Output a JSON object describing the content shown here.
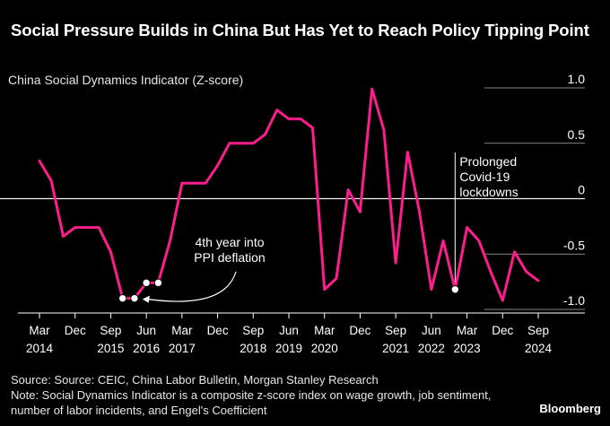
{
  "title": "Social Pressure Builds in China But Has Yet to Reach Policy Tipping Point",
  "subtitle": "China Social Dynamics Indicator (Z-score)",
  "footer": {
    "source": "Source: Source: CEIC, China Labor Bulletin, Morgan Stanley Research",
    "note": "Note: Social Dynamics Indicator is a composite z-score index on wage growth, job sentiment, number of labor incidents, and Engel's Coefficient"
  },
  "brand": "Bloomberg",
  "colors": {
    "background": "#000000",
    "line": "#ff1d8e",
    "text": "#ffffff",
    "grid": "#ffffff"
  },
  "chart_data": {
    "type": "line",
    "ylim": [
      -1.0,
      1.0
    ],
    "y_ticks": [
      1.0,
      0.5,
      0,
      -0.5,
      -1.0
    ],
    "y_tick_labels": [
      "1.0",
      "0.5",
      "0",
      "-0.5",
      "-1.0"
    ],
    "x_ticks": [
      {
        "t": 2014.17,
        "top": "Mar",
        "bottom": "2014"
      },
      {
        "t": 2014.92,
        "top": "Dec",
        "bottom": ""
      },
      {
        "t": 2015.67,
        "top": "Sep",
        "bottom": "2015"
      },
      {
        "t": 2016.42,
        "top": "Jun",
        "bottom": "2016"
      },
      {
        "t": 2017.17,
        "top": "Mar",
        "bottom": "2017"
      },
      {
        "t": 2017.92,
        "top": "Dec",
        "bottom": ""
      },
      {
        "t": 2018.67,
        "top": "Sep",
        "bottom": "2018"
      },
      {
        "t": 2019.42,
        "top": "Jun",
        "bottom": "2019"
      },
      {
        "t": 2020.17,
        "top": "Mar",
        "bottom": "2020"
      },
      {
        "t": 2020.92,
        "top": "Dec",
        "bottom": ""
      },
      {
        "t": 2021.67,
        "top": "Sep",
        "bottom": "2021"
      },
      {
        "t": 2022.42,
        "top": "Jun",
        "bottom": "2022"
      },
      {
        "t": 2023.17,
        "top": "Mar",
        "bottom": "2023"
      },
      {
        "t": 2023.92,
        "top": "Dec",
        "bottom": ""
      },
      {
        "t": 2024.67,
        "top": "Sep",
        "bottom": "2024"
      }
    ],
    "series": [
      {
        "name": "",
        "points": [
          [
            2014.17,
            0.34
          ],
          [
            2014.42,
            0.16
          ],
          [
            2014.67,
            -0.34
          ],
          [
            2014.92,
            -0.26
          ],
          [
            2015.17,
            -0.26
          ],
          [
            2015.42,
            -0.26
          ],
          [
            2015.67,
            -0.48
          ],
          [
            2015.92,
            -0.9
          ],
          [
            2016.17,
            -0.9
          ],
          [
            2016.42,
            -0.76
          ],
          [
            2016.67,
            -0.76
          ],
          [
            2016.92,
            -0.38
          ],
          [
            2017.17,
            0.14
          ],
          [
            2017.42,
            0.14
          ],
          [
            2017.67,
            0.14
          ],
          [
            2017.92,
            0.3
          ],
          [
            2018.17,
            0.5
          ],
          [
            2018.42,
            0.5
          ],
          [
            2018.67,
            0.5
          ],
          [
            2018.92,
            0.58
          ],
          [
            2019.17,
            0.8
          ],
          [
            2019.42,
            0.72
          ],
          [
            2019.67,
            0.72
          ],
          [
            2019.92,
            0.64
          ],
          [
            2020.17,
            -0.82
          ],
          [
            2020.42,
            -0.72
          ],
          [
            2020.67,
            0.08
          ],
          [
            2020.92,
            -0.12
          ],
          [
            2021.17,
            0.99
          ],
          [
            2021.42,
            0.62
          ],
          [
            2021.67,
            -0.58
          ],
          [
            2021.92,
            0.42
          ],
          [
            2022.17,
            -0.12
          ],
          [
            2022.42,
            -0.82
          ],
          [
            2022.67,
            -0.38
          ],
          [
            2022.92,
            -0.82
          ],
          [
            2023.17,
            -0.26
          ],
          [
            2023.42,
            -0.38
          ],
          [
            2023.67,
            -0.66
          ],
          [
            2023.92,
            -0.92
          ],
          [
            2024.17,
            -0.48
          ],
          [
            2024.42,
            -0.66
          ],
          [
            2024.67,
            -0.74
          ]
        ]
      }
    ],
    "highlight_points": [
      [
        2015.92,
        -0.9
      ],
      [
        2016.17,
        -0.9
      ],
      [
        2016.42,
        -0.76
      ],
      [
        2016.67,
        -0.76
      ],
      [
        2022.92,
        -0.82
      ]
    ],
    "annotations": [
      {
        "id": "deflation",
        "lines": [
          "4th year into",
          "PPI deflation"
        ]
      },
      {
        "id": "covid",
        "lines": [
          "Prolonged",
          "Covid-19",
          "lockdowns"
        ]
      }
    ]
  }
}
